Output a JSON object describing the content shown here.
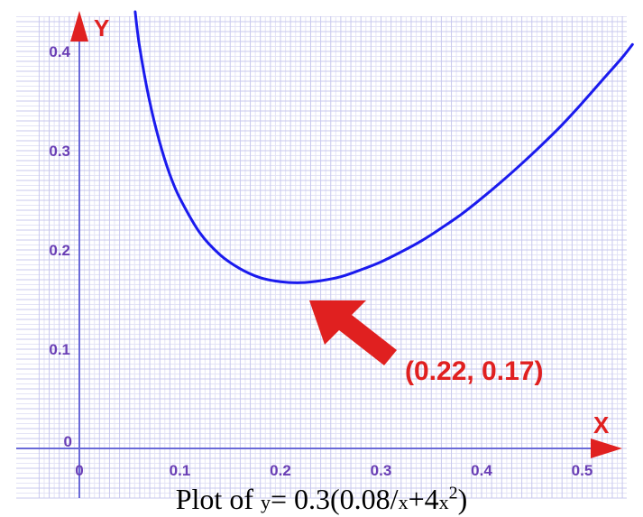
{
  "chart_data": {
    "type": "line",
    "title": "",
    "xlabel": "X",
    "ylabel": "Y",
    "xlim": [
      -0.04,
      0.55
    ],
    "ylim": [
      -0.0,
      0.44
    ],
    "x_ticks": [
      0,
      0.1,
      0.2,
      0.3,
      0.4,
      0.5
    ],
    "x_tick_labels": [
      "0",
      "0.1",
      "0.2",
      "0.3",
      "0.4",
      "0.5"
    ],
    "y_ticks": [
      0,
      0.1,
      0.2,
      0.3,
      0.4
    ],
    "y_tick_labels": [
      "0",
      "0.1",
      "0.2",
      "0.3",
      "0.4"
    ],
    "grid": true,
    "series": [
      {
        "color": "#1a1aee",
        "x": [
          0.06,
          0.07,
          0.08,
          0.09,
          0.1,
          0.12,
          0.14,
          0.16,
          0.18,
          0.2,
          0.22,
          0.24,
          0.26,
          0.28,
          0.3,
          0.32,
          0.34,
          0.36,
          0.38,
          0.4,
          0.42,
          0.44,
          0.46,
          0.48,
          0.5,
          0.52,
          0.54,
          0.55
        ],
        "y": [
          0.404,
          0.349,
          0.308,
          0.276,
          0.252,
          0.217,
          0.195,
          0.181,
          0.172,
          0.168,
          0.167,
          0.169,
          0.173,
          0.18,
          0.188,
          0.198,
          0.209,
          0.222,
          0.236,
          0.252,
          0.269,
          0.287,
          0.306,
          0.326,
          0.348,
          0.371,
          0.394,
          0.407
        ]
      }
    ],
    "annotation": {
      "text": "(0.22, 0.17)",
      "x": 0.22,
      "y": 0.17,
      "color": "#e02020"
    }
  },
  "caption": {
    "prefix": "Plot of ",
    "var_y": "y",
    "equals": "= 0.3(0.08/",
    "var_x1": "x",
    "plus": "+4",
    "var_x2": "x",
    "exponent": "2",
    "close": ")"
  }
}
